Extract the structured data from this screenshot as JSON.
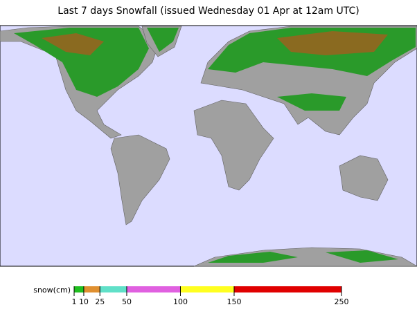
{
  "title": "Last 7 days Snowfall (issued Wednesday 01 Apr at 12am UTC)",
  "legend": {
    "label": "snow(cm)",
    "ticks": [
      1,
      10,
      25,
      50,
      100,
      150,
      250
    ],
    "colors": [
      "#20c020",
      "#e09030",
      "#60e0c8",
      "#e060e0",
      "#ffff20",
      "#e00000"
    ]
  }
}
